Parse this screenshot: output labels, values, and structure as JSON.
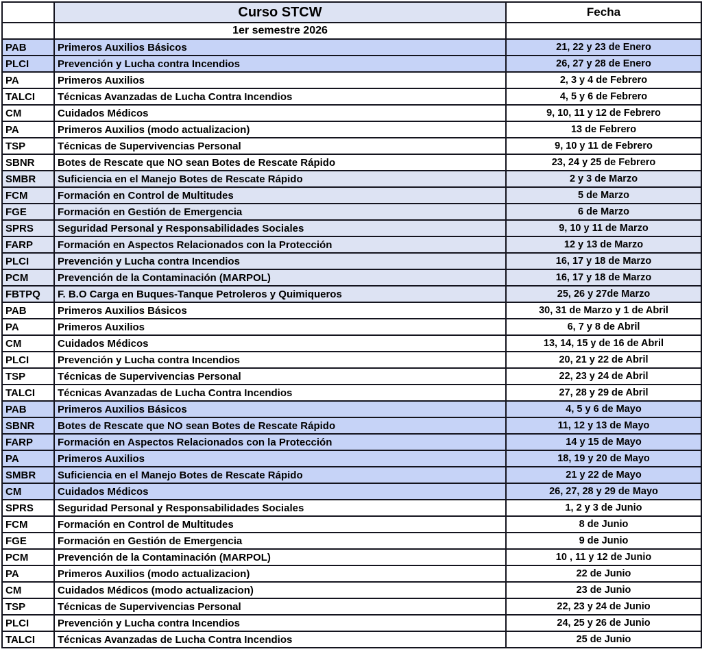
{
  "header": {
    "course_col_title": "Curso STCW",
    "date_col_title": "Fecha",
    "semester_label": "1er semestre 2026"
  },
  "colors": {
    "highlight_strong": "#c6d3f7",
    "highlight_light": "#dde3f3",
    "header_bg": "#dde3f3",
    "border": "#14141e",
    "text": "#000000"
  },
  "rows": [
    {
      "code": "PAB",
      "course": "Primeros Auxilios Básicos",
      "date": "21, 22 y 23 de Enero",
      "bg": "strong"
    },
    {
      "code": "PLCI",
      "course": "Prevención y Lucha contra Incendios",
      "date": "26, 27 y 28 de Enero",
      "bg": "strong"
    },
    {
      "code": "PA",
      "course": "Primeros Auxilios",
      "date": "2, 3 y 4 de Febrero",
      "bg": "white"
    },
    {
      "code": "TALCI",
      "course": "Técnicas Avanzadas de Lucha Contra Incendios",
      "date": "4, 5 y 6 de Febrero",
      "bg": "white"
    },
    {
      "code": "CM",
      "course": "Cuidados Médicos",
      "date": "9, 10, 11 y 12 de Febrero",
      "bg": "white"
    },
    {
      "code": "PA",
      "course": "Primeros Auxilios (modo actualizacion)",
      "date": "13 de Febrero",
      "bg": "white"
    },
    {
      "code": "TSP",
      "course": "Técnicas de Supervivencias Personal",
      "date": "9, 10 y 11 de Febrero",
      "bg": "white"
    },
    {
      "code": "SBNR",
      "course": "Botes de Rescate que NO sean Botes de Rescate Rápido",
      "date": "23, 24 y 25 de Febrero",
      "bg": "white"
    },
    {
      "code": "SMBR",
      "course": "Suficiencia en el Manejo Botes de Rescate Rápido",
      "date": "2 y 3 de Marzo",
      "bg": "light"
    },
    {
      "code": "FCM",
      "course": "Formación en Control de Multitudes",
      "date": "5 de Marzo",
      "bg": "light"
    },
    {
      "code": "FGE",
      "course": "Formación en Gestión de Emergencia",
      "date": "6 de Marzo",
      "bg": "light"
    },
    {
      "code": "SPRS",
      "course": "Seguridad Personal y Responsabilidades Sociales",
      "date": "9, 10 y 11 de Marzo",
      "bg": "light"
    },
    {
      "code": "FARP",
      "course": "Formación en Aspectos Relacionados con la Protección",
      "date": "12 y 13 de Marzo",
      "bg": "light"
    },
    {
      "code": "PLCI",
      "course": "Prevención y Lucha contra Incendios",
      "date": "16, 17 y 18 de Marzo",
      "bg": "light"
    },
    {
      "code": "PCM",
      "course": "Prevención de la Contaminación (MARPOL)",
      "date": "16, 17 y 18 de Marzo",
      "bg": "light"
    },
    {
      "code": "FBTPQ",
      "course": "F. B.O Carga en Buques-Tanque Petroleros y Quimiqueros",
      "date": "25, 26 y 27de Marzo",
      "bg": "light"
    },
    {
      "code": "PAB",
      "course": "Primeros Auxilios Básicos",
      "date": "30, 31 de Marzo y 1 de Abril",
      "bg": "white"
    },
    {
      "code": "PA",
      "course": "Primeros Auxilios",
      "date": "6, 7 y 8 de Abril",
      "bg": "white"
    },
    {
      "code": "CM",
      "course": "Cuidados Médicos",
      "date": "13, 14, 15 y de 16 de Abril",
      "bg": "white"
    },
    {
      "code": "PLCI",
      "course": "Prevención y Lucha contra Incendios",
      "date": "20, 21 y 22 de Abril",
      "bg": "white"
    },
    {
      "code": "TSP",
      "course": "Técnicas de Supervivencias Personal",
      "date": "22, 23 y 24 de Abril",
      "bg": "white"
    },
    {
      "code": "TALCI",
      "course": "Técnicas Avanzadas de Lucha Contra Incendios",
      "date": "27, 28 y 29 de Abril",
      "bg": "white"
    },
    {
      "code": "PAB",
      "course": "Primeros Auxilios Básicos",
      "date": "4, 5 y 6 de Mayo",
      "bg": "strong"
    },
    {
      "code": "SBNR",
      "course": "Botes de Rescate que NO sean Botes de Rescate Rápido",
      "date": "11, 12 y 13 de Mayo",
      "bg": "strong"
    },
    {
      "code": "FARP",
      "course": "Formación en Aspectos Relacionados con la Protección",
      "date": "14 y 15 de Mayo",
      "bg": "strong"
    },
    {
      "code": "PA",
      "course": "Primeros Auxilios",
      "date": "18, 19 y 20 de Mayo",
      "bg": "strong"
    },
    {
      "code": "SMBR",
      "course": "Suficiencia en el Manejo Botes de Rescate Rápido",
      "date": "21 y 22 de Mayo",
      "bg": "strong"
    },
    {
      "code": "CM",
      "course": "Cuidados Médicos",
      "date": "26, 27, 28 y 29 de Mayo",
      "bg": "strong"
    },
    {
      "code": "SPRS",
      "course": "Seguridad Personal y Responsabilidades Sociales",
      "date": "1, 2 y 3 de Junio",
      "bg": "white"
    },
    {
      "code": "FCM",
      "course": "Formación en Control de Multitudes",
      "date": "8 de Junio",
      "bg": "white"
    },
    {
      "code": "FGE",
      "course": "Formación en Gestión de Emergencia",
      "date": "9 de Junio",
      "bg": "white"
    },
    {
      "code": "PCM",
      "course": "Prevención de la Contaminación (MARPOL)",
      "date": "10 , 11 y 12 de Junio",
      "bg": "white"
    },
    {
      "code": "PA",
      "course": "Primeros Auxilios (modo actualizacion)",
      "date": "22 de Junio",
      "bg": "white"
    },
    {
      "code": "CM",
      "course": "Cuidados Médicos (modo actualizacion)",
      "date": "23 de Junio",
      "bg": "white"
    },
    {
      "code": "TSP",
      "course": "Técnicas de Supervivencias Personal",
      "date": "22, 23 y 24 de Junio",
      "bg": "white"
    },
    {
      "code": "PLCI",
      "course": "Prevención y Lucha contra Incendios",
      "date": "24, 25 y 26 de Junio",
      "bg": "white"
    },
    {
      "code": "TALCI",
      "course": "Técnicas Avanzadas de Lucha Contra Incendios",
      "date": "25 de Junio",
      "bg": "white"
    }
  ]
}
